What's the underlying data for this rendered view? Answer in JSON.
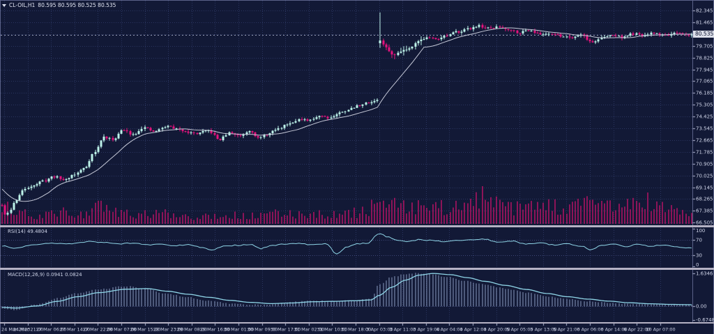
{
  "header": {
    "symbol": "CL-OIL,H1",
    "ohlc": "80.595 80.595 80.525 80.535"
  },
  "price_axis": {
    "current": "80.535"
  },
  "panes": {
    "rsi": {
      "label": "RSI(14) 49.4804"
    },
    "macd": {
      "label": "MACD(12,26,9) 0.0941 0.0824"
    }
  },
  "chart_data": {
    "type": "candlestick",
    "instrument": "CL-OIL",
    "timeframe": "H1",
    "ohlc_latest": {
      "open": 80.595,
      "high": 80.595,
      "low": 80.525,
      "close": 80.535
    },
    "current_price": 80.535,
    "price_ticks": [
      "82.345",
      "81.465",
      "80.585",
      "79.705",
      "78.825",
      "77.945",
      "77.065",
      "76.185",
      "75.305",
      "74.425",
      "73.545",
      "72.665",
      "71.785",
      "70.905",
      "70.025",
      "69.145",
      "68.265",
      "67.385",
      "66.505"
    ],
    "x_labels": [
      "24 Mar 2023",
      "24 Mar 21:00",
      "27 Mar 06:00",
      "27 Mar 14:00",
      "27 Mar 22:00",
      "28 Mar 07:00",
      "28 Mar 15:00",
      "28 Mar 23:00",
      "29 Mar 08:00",
      "29 Mar 16:00",
      "30 Mar 01:00",
      "30 Mar 09:00",
      "30 Mar 17:00",
      "31 Mar 02:00",
      "31 Mar 10:00",
      "31 Mar 18:00",
      "3 Apr 03:00",
      "3 Apr 11:00",
      "3 Apr 19:00",
      "4 Apr 04:00",
      "4 Apr 12:00",
      "4 Apr 20:00",
      "5 Apr 05:00",
      "5 Apr 13:00",
      "5 Apr 21:00",
      "6 Apr 06:00",
      "6 Apr 14:00",
      "6 Apr 22:00",
      "10 Apr 07:00"
    ],
    "candle_count": 238,
    "seed": 11,
    "price_path": [
      [
        0,
        67.8
      ],
      [
        0.005,
        67.0
      ],
      [
        0.012,
        67.45
      ],
      [
        0.02,
        68.2
      ],
      [
        0.03,
        68.9
      ],
      [
        0.045,
        69.3
      ],
      [
        0.06,
        69.6
      ],
      [
        0.075,
        69.95
      ],
      [
        0.09,
        69.7
      ],
      [
        0.105,
        70.1
      ],
      [
        0.12,
        70.6
      ],
      [
        0.133,
        71.7
      ],
      [
        0.148,
        72.9
      ],
      [
        0.16,
        72.7
      ],
      [
        0.175,
        73.4
      ],
      [
        0.19,
        73.1
      ],
      [
        0.205,
        73.6
      ],
      [
        0.22,
        73.3
      ],
      [
        0.24,
        73.7
      ],
      [
        0.26,
        73.4
      ],
      [
        0.28,
        73.15
      ],
      [
        0.3,
        73.35
      ],
      [
        0.315,
        72.7
      ],
      [
        0.33,
        73.2
      ],
      [
        0.345,
        73.0
      ],
      [
        0.36,
        73.4
      ],
      [
        0.372,
        72.8
      ],
      [
        0.385,
        73.1
      ],
      [
        0.4,
        73.5
      ],
      [
        0.415,
        73.9
      ],
      [
        0.43,
        74.2
      ],
      [
        0.445,
        74.1
      ],
      [
        0.46,
        74.5
      ],
      [
        0.475,
        74.35
      ],
      [
        0.49,
        74.7
      ],
      [
        0.505,
        75.0
      ],
      [
        0.52,
        75.3
      ],
      [
        0.535,
        75.5
      ],
      [
        0.545,
        75.7
      ],
      [
        0.549,
        80.0
      ],
      [
        0.558,
        79.5
      ],
      [
        0.568,
        78.95
      ],
      [
        0.578,
        79.35
      ],
      [
        0.59,
        79.5
      ],
      [
        0.602,
        80.05
      ],
      [
        0.615,
        80.3
      ],
      [
        0.63,
        80.25
      ],
      [
        0.645,
        80.45
      ],
      [
        0.66,
        80.75
      ],
      [
        0.675,
        80.95
      ],
      [
        0.69,
        81.2
      ],
      [
        0.705,
        81.0
      ],
      [
        0.72,
        81.1
      ],
      [
        0.735,
        80.95
      ],
      [
        0.75,
        80.7
      ],
      [
        0.765,
        80.9
      ],
      [
        0.78,
        80.55
      ],
      [
        0.795,
        80.65
      ],
      [
        0.81,
        80.45
      ],
      [
        0.825,
        80.35
      ],
      [
        0.84,
        80.55
      ],
      [
        0.855,
        79.95
      ],
      [
        0.87,
        80.3
      ],
      [
        0.885,
        80.5
      ],
      [
        0.9,
        80.35
      ],
      [
        0.915,
        80.6
      ],
      [
        0.93,
        80.45
      ],
      [
        0.945,
        80.65
      ],
      [
        0.96,
        80.5
      ],
      [
        0.975,
        80.6
      ],
      [
        1,
        80.535
      ]
    ],
    "gap": {
      "frac": 0.5474,
      "open": 79.9,
      "high": 82.2,
      "low": 79.55,
      "close": 80.1
    },
    "ma_period": 16,
    "ma_prehistory": [
      70.9,
      67.5
    ],
    "volume_profile": [
      [
        0,
        0.45
      ],
      [
        0.02,
        0.3
      ],
      [
        0.05,
        0.22
      ],
      [
        0.08,
        0.3
      ],
      [
        0.11,
        0.26
      ],
      [
        0.14,
        0.42
      ],
      [
        0.17,
        0.3
      ],
      [
        0.2,
        0.24
      ],
      [
        0.24,
        0.28
      ],
      [
        0.28,
        0.2
      ],
      [
        0.32,
        0.24
      ],
      [
        0.36,
        0.2
      ],
      [
        0.4,
        0.26
      ],
      [
        0.44,
        0.28
      ],
      [
        0.48,
        0.24
      ],
      [
        0.52,
        0.3
      ],
      [
        0.545,
        0.55
      ],
      [
        0.56,
        0.5
      ],
      [
        0.58,
        0.42
      ],
      [
        0.6,
        0.48
      ],
      [
        0.62,
        0.38
      ],
      [
        0.64,
        0.44
      ],
      [
        0.66,
        0.5
      ],
      [
        0.68,
        0.46
      ],
      [
        0.7,
        0.95
      ],
      [
        0.712,
        0.5
      ],
      [
        0.73,
        0.44
      ],
      [
        0.75,
        0.4
      ],
      [
        0.77,
        0.46
      ],
      [
        0.79,
        0.5
      ],
      [
        0.81,
        0.4
      ],
      [
        0.83,
        0.46
      ],
      [
        0.85,
        0.52
      ],
      [
        0.87,
        0.56
      ],
      [
        0.89,
        0.46
      ],
      [
        0.91,
        0.5
      ],
      [
        0.93,
        0.62
      ],
      [
        0.95,
        0.46
      ],
      [
        0.97,
        0.36
      ],
      [
        1,
        0.3
      ]
    ],
    "rsi": {
      "label": "RSI(14) 49.4804",
      "last": 49.4804,
      "levels": [
        100,
        70,
        30,
        0
      ],
      "path": [
        [
          0,
          54
        ],
        [
          0.02,
          48
        ],
        [
          0.04,
          56
        ],
        [
          0.07,
          62
        ],
        [
          0.1,
          60
        ],
        [
          0.13,
          66
        ],
        [
          0.15,
          63
        ],
        [
          0.17,
          60
        ],
        [
          0.19,
          62
        ],
        [
          0.21,
          57
        ],
        [
          0.23,
          60
        ],
        [
          0.25,
          55
        ],
        [
          0.27,
          58
        ],
        [
          0.29,
          50
        ],
        [
          0.305,
          43
        ],
        [
          0.32,
          53
        ],
        [
          0.34,
          56
        ],
        [
          0.36,
          58
        ],
        [
          0.375,
          47
        ],
        [
          0.39,
          55
        ],
        [
          0.41,
          59
        ],
        [
          0.43,
          61
        ],
        [
          0.45,
          57
        ],
        [
          0.47,
          60
        ],
        [
          0.485,
          33
        ],
        [
          0.5,
          52
        ],
        [
          0.515,
          60
        ],
        [
          0.53,
          62
        ],
        [
          0.547,
          88
        ],
        [
          0.56,
          78
        ],
        [
          0.575,
          68
        ],
        [
          0.59,
          66
        ],
        [
          0.605,
          71
        ],
        [
          0.62,
          69
        ],
        [
          0.64,
          66
        ],
        [
          0.66,
          69
        ],
        [
          0.68,
          71
        ],
        [
          0.7,
          72
        ],
        [
          0.72,
          64
        ],
        [
          0.74,
          67
        ],
        [
          0.76,
          59
        ],
        [
          0.78,
          63
        ],
        [
          0.8,
          57
        ],
        [
          0.82,
          60
        ],
        [
          0.84,
          54
        ],
        [
          0.855,
          44
        ],
        [
          0.87,
          56
        ],
        [
          0.89,
          59
        ],
        [
          0.905,
          51
        ],
        [
          0.92,
          58
        ],
        [
          0.94,
          54
        ],
        [
          0.96,
          57
        ],
        [
          0.98,
          51
        ],
        [
          1,
          49.5
        ]
      ]
    },
    "macd": {
      "label": "MACD(12,26,9) 0.0941 0.0824",
      "last_main": 0.0941,
      "last_signal": 0.0824,
      "axis_ticks": [
        1.6346,
        0.0,
        -0.6748
      ],
      "axis_labels": [
        "1.6346",
        "0.00",
        "-0.6748"
      ],
      "main_path": [
        [
          0,
          -0.12
        ],
        [
          0.02,
          -0.18
        ],
        [
          0.05,
          0.1
        ],
        [
          0.08,
          0.4
        ],
        [
          0.11,
          0.65
        ],
        [
          0.14,
          0.85
        ],
        [
          0.18,
          1.0
        ],
        [
          0.21,
          0.85
        ],
        [
          0.24,
          0.62
        ],
        [
          0.27,
          0.45
        ],
        [
          0.3,
          0.28
        ],
        [
          0.33,
          0.14
        ],
        [
          0.36,
          0.08
        ],
        [
          0.39,
          0.1
        ],
        [
          0.42,
          0.22
        ],
        [
          0.45,
          0.28
        ],
        [
          0.48,
          0.26
        ],
        [
          0.51,
          0.3
        ],
        [
          0.535,
          0.36
        ],
        [
          0.547,
          1.1
        ],
        [
          0.565,
          1.45
        ],
        [
          0.585,
          1.6
        ],
        [
          0.6,
          1.64
        ],
        [
          0.62,
          1.6
        ],
        [
          0.645,
          1.45
        ],
        [
          0.67,
          1.28
        ],
        [
          0.7,
          1.08
        ],
        [
          0.73,
          0.88
        ],
        [
          0.76,
          0.68
        ],
        [
          0.79,
          0.5
        ],
        [
          0.82,
          0.36
        ],
        [
          0.85,
          0.26
        ],
        [
          0.88,
          0.17
        ],
        [
          0.91,
          0.12
        ],
        [
          0.94,
          0.1
        ],
        [
          0.97,
          0.09
        ],
        [
          1,
          0.094
        ]
      ],
      "signal_path": [
        [
          0,
          -0.05
        ],
        [
          0.02,
          -0.08
        ],
        [
          0.05,
          0.02
        ],
        [
          0.08,
          0.25
        ],
        [
          0.11,
          0.48
        ],
        [
          0.14,
          0.68
        ],
        [
          0.18,
          0.85
        ],
        [
          0.21,
          0.88
        ],
        [
          0.24,
          0.75
        ],
        [
          0.27,
          0.6
        ],
        [
          0.3,
          0.45
        ],
        [
          0.33,
          0.3
        ],
        [
          0.36,
          0.2
        ],
        [
          0.39,
          0.14
        ],
        [
          0.42,
          0.17
        ],
        [
          0.45,
          0.23
        ],
        [
          0.48,
          0.25
        ],
        [
          0.51,
          0.28
        ],
        [
          0.535,
          0.32
        ],
        [
          0.547,
          0.55
        ],
        [
          0.565,
          0.95
        ],
        [
          0.585,
          1.3
        ],
        [
          0.605,
          1.55
        ],
        [
          0.625,
          1.63
        ],
        [
          0.65,
          1.57
        ],
        [
          0.675,
          1.42
        ],
        [
          0.7,
          1.24
        ],
        [
          0.73,
          1.04
        ],
        [
          0.76,
          0.84
        ],
        [
          0.79,
          0.64
        ],
        [
          0.82,
          0.48
        ],
        [
          0.85,
          0.36
        ],
        [
          0.88,
          0.26
        ],
        [
          0.91,
          0.18
        ],
        [
          0.94,
          0.13
        ],
        [
          0.97,
          0.1
        ],
        [
          1,
          0.082
        ]
      ]
    },
    "colors": {
      "background": "#121936",
      "grid": "#2a3560",
      "bull": "#bdf3ea",
      "bear": "#e5137d",
      "volume": "#c01368",
      "ma": "#c6c9d8",
      "indicator": "#8fd5e7",
      "histogram": "#8b9ac0",
      "separator": "#b5b2c4",
      "axis_text": "#cdd2e6",
      "axis_line": "#5b6288",
      "tick": "#8a90ad",
      "level_line": "#3e4878",
      "price_line": "#9aa0b8",
      "badge_bg": "#dcdfe9",
      "badge_text": "#0d1330"
    }
  }
}
